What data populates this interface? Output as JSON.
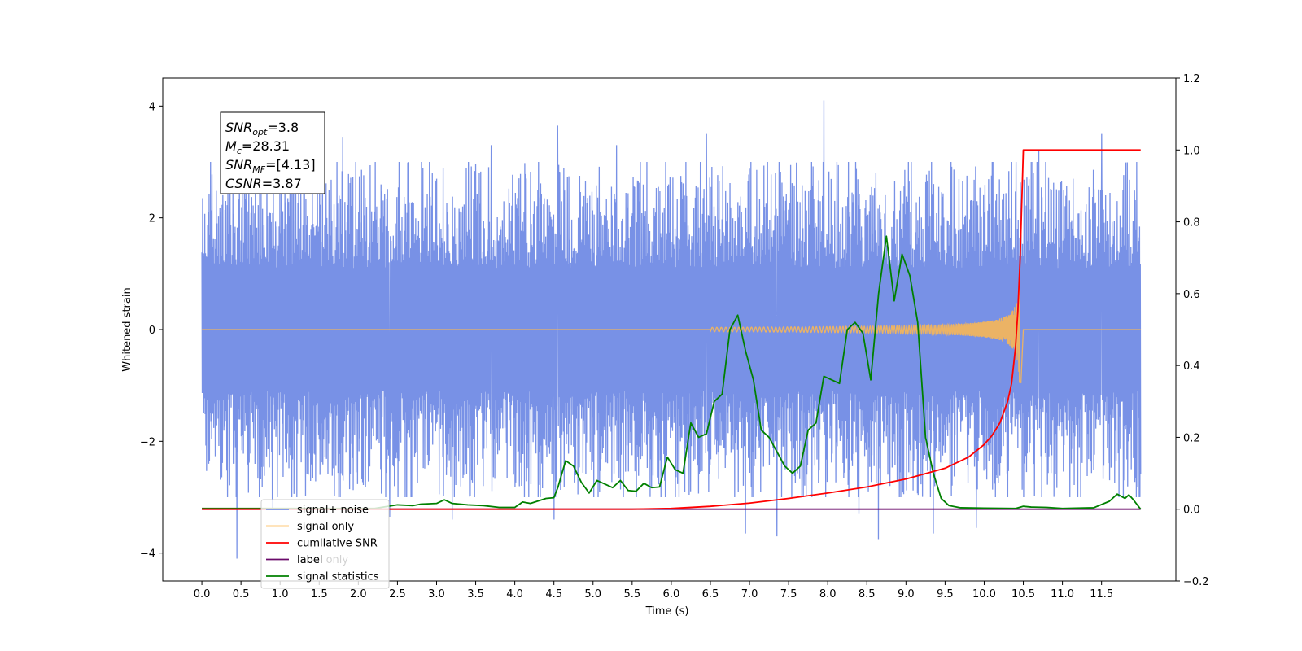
{
  "chart_data": {
    "type": "line",
    "xlabel": "Time (s)",
    "ylabel": "Whitened strain",
    "xlim": [
      -0.5,
      12.45
    ],
    "ylim": [
      -4.5,
      4.5
    ],
    "y2lim": [
      -0.2,
      1.2
    ],
    "x_ticks": [
      0.0,
      0.5,
      1.0,
      1.5,
      2.0,
      2.5,
      3.0,
      3.5,
      4.0,
      4.5,
      5.0,
      5.5,
      6.0,
      6.5,
      7.0,
      7.5,
      8.0,
      8.5,
      9.0,
      9.5,
      10.0,
      10.5,
      11.0,
      11.5
    ],
    "x_tick_labels": [
      "0.0",
      "0.5",
      "1.0",
      "1.5",
      "2.0",
      "2.5",
      "3.0",
      "3.5",
      "4.0",
      "4.5",
      "5.0",
      "5.5",
      "6.0",
      "6.5",
      "7.0",
      "7.5",
      "8.0",
      "8.5",
      "9.0",
      "9.5",
      "10.0",
      "10.5",
      "11.0",
      "11.5"
    ],
    "y_ticks": [
      -4,
      -2,
      0,
      2,
      4
    ],
    "y_tick_labels": [
      "−4",
      "−2",
      "0",
      "2",
      "4"
    ],
    "y2_ticks": [
      -0.2,
      0.0,
      0.2,
      0.4,
      0.6,
      0.8,
      1.0,
      1.2
    ],
    "y2_tick_labels": [
      "−0.2",
      "0.0",
      "0.2",
      "0.4",
      "0.6",
      "0.8",
      "1.0",
      "1.2"
    ],
    "grid": false,
    "legend_position": "lower-left",
    "colors": {
      "noise": "#7891e6",
      "signal": "#ffb84d",
      "cumulative_snr": "#ff0000",
      "label": "#6a0a6a",
      "signal_statistics": "#008000"
    },
    "noise_envelope": {
      "x_range": [
        0.0,
        12.0
      ],
      "typical_range": [
        -1.9,
        1.9
      ],
      "spikes": [
        {
          "x": 0.45,
          "y": -4.1
        },
        {
          "x": 0.9,
          "y": -3.2
        },
        {
          "x": 1.3,
          "y": 3.3
        },
        {
          "x": 1.8,
          "y": 3.45
        },
        {
          "x": 2.4,
          "y": -3.35
        },
        {
          "x": 3.2,
          "y": -3.4
        },
        {
          "x": 4.5,
          "y": -3.4
        },
        {
          "x": 4.55,
          "y": 3.65
        },
        {
          "x": 5.3,
          "y": 3.3
        },
        {
          "x": 6.45,
          "y": 3.5
        },
        {
          "x": 6.95,
          "y": -3.65
        },
        {
          "x": 7.35,
          "y": -3.7
        },
        {
          "x": 7.95,
          "y": 4.1
        },
        {
          "x": 8.4,
          "y": -3.3
        },
        {
          "x": 8.65,
          "y": -3.75
        },
        {
          "x": 9.35,
          "y": -3.65
        },
        {
          "x": 9.9,
          "y": -3.55
        },
        {
          "x": 11.5,
          "y": 3.5
        },
        {
          "x": 10.7,
          "y": 3.2
        },
        {
          "x": 3.7,
          "y": 3.3
        }
      ]
    },
    "signal_chirp": {
      "start_x": 6.5,
      "merger_x": 10.45,
      "end_x": 10.5,
      "peak_amplitude": 0.95
    },
    "cumulative_snr": [
      [
        0.0,
        0.0
      ],
      [
        5.5,
        0.0
      ],
      [
        6.0,
        0.002
      ],
      [
        6.5,
        0.008
      ],
      [
        7.0,
        0.017
      ],
      [
        7.5,
        0.03
      ],
      [
        8.0,
        0.045
      ],
      [
        8.5,
        0.062
      ],
      [
        9.0,
        0.084
      ],
      [
        9.5,
        0.114
      ],
      [
        9.8,
        0.145
      ],
      [
        10.0,
        0.18
      ],
      [
        10.1,
        0.205
      ],
      [
        10.2,
        0.24
      ],
      [
        10.3,
        0.3
      ],
      [
        10.35,
        0.35
      ],
      [
        10.4,
        0.45
      ],
      [
        10.43,
        0.55
      ],
      [
        10.46,
        0.7
      ],
      [
        10.48,
        0.85
      ],
      [
        10.5,
        1.0
      ],
      [
        12.0,
        1.0
      ]
    ],
    "label_only": [
      [
        0.0,
        0.0
      ],
      [
        12.0,
        0.0
      ]
    ],
    "signal_statistics": [
      [
        0.0,
        0.002
      ],
      [
        2.2,
        0.002
      ],
      [
        2.5,
        0.012
      ],
      [
        2.7,
        0.01
      ],
      [
        2.8,
        0.014
      ],
      [
        3.0,
        0.016
      ],
      [
        3.1,
        0.026
      ],
      [
        3.2,
        0.016
      ],
      [
        3.4,
        0.012
      ],
      [
        3.6,
        0.01
      ],
      [
        3.8,
        0.005
      ],
      [
        4.0,
        0.005
      ],
      [
        4.1,
        0.02
      ],
      [
        4.2,
        0.016
      ],
      [
        4.4,
        0.03
      ],
      [
        4.5,
        0.032
      ],
      [
        4.55,
        0.06
      ],
      [
        4.65,
        0.135
      ],
      [
        4.75,
        0.12
      ],
      [
        4.85,
        0.075
      ],
      [
        4.95,
        0.045
      ],
      [
        5.05,
        0.08
      ],
      [
        5.15,
        0.07
      ],
      [
        5.25,
        0.06
      ],
      [
        5.35,
        0.08
      ],
      [
        5.45,
        0.052
      ],
      [
        5.55,
        0.05
      ],
      [
        5.65,
        0.072
      ],
      [
        5.75,
        0.06
      ],
      [
        5.85,
        0.062
      ],
      [
        5.95,
        0.145
      ],
      [
        6.05,
        0.11
      ],
      [
        6.15,
        0.1
      ],
      [
        6.25,
        0.24
      ],
      [
        6.35,
        0.2
      ],
      [
        6.45,
        0.21
      ],
      [
        6.55,
        0.3
      ],
      [
        6.65,
        0.32
      ],
      [
        6.75,
        0.5
      ],
      [
        6.85,
        0.54
      ],
      [
        6.95,
        0.44
      ],
      [
        7.05,
        0.36
      ],
      [
        7.15,
        0.22
      ],
      [
        7.25,
        0.2
      ],
      [
        7.35,
        0.16
      ],
      [
        7.45,
        0.12
      ],
      [
        7.55,
        0.1
      ],
      [
        7.65,
        0.12
      ],
      [
        7.75,
        0.22
      ],
      [
        7.85,
        0.24
      ],
      [
        7.95,
        0.37
      ],
      [
        8.05,
        0.36
      ],
      [
        8.15,
        0.35
      ],
      [
        8.25,
        0.5
      ],
      [
        8.35,
        0.52
      ],
      [
        8.45,
        0.49
      ],
      [
        8.55,
        0.36
      ],
      [
        8.65,
        0.6
      ],
      [
        8.75,
        0.76
      ],
      [
        8.85,
        0.58
      ],
      [
        8.95,
        0.71
      ],
      [
        9.05,
        0.65
      ],
      [
        9.15,
        0.52
      ],
      [
        9.25,
        0.2
      ],
      [
        9.35,
        0.1
      ],
      [
        9.45,
        0.03
      ],
      [
        9.55,
        0.01
      ],
      [
        9.7,
        0.004
      ],
      [
        10.0,
        0.003
      ],
      [
        10.4,
        0.002
      ],
      [
        10.5,
        0.008
      ],
      [
        10.6,
        0.006
      ],
      [
        10.8,
        0.005
      ],
      [
        11.0,
        0.002
      ],
      [
        11.4,
        0.004
      ],
      [
        11.6,
        0.022
      ],
      [
        11.7,
        0.042
      ],
      [
        11.8,
        0.03
      ],
      [
        11.85,
        0.04
      ],
      [
        11.9,
        0.028
      ],
      [
        12.0,
        0.0
      ]
    ]
  },
  "info_box": {
    "lines": [
      {
        "main": "SNR",
        "sub": "opt",
        "rest": "=3.8"
      },
      {
        "main": "M",
        "sub": "c",
        "rest": "=28.31"
      },
      {
        "main": "SNR",
        "sub": "MF",
        "rest": "=[4.13]"
      },
      {
        "main": "CSNR",
        "sub": "",
        "rest": "=3.87"
      }
    ]
  },
  "legend": {
    "items": [
      {
        "label": "signal+ noise",
        "color": "#7891e6"
      },
      {
        "label": "signal only",
        "color": "#ffb84d"
      },
      {
        "label": "cumilative SNR",
        "color": "#ff0000"
      },
      {
        "label": "label",
        "color": "#6a0a6a"
      },
      {
        "label": "signal statistics",
        "color": "#008000"
      }
    ],
    "ghost_labels": [
      "label only"
    ]
  }
}
